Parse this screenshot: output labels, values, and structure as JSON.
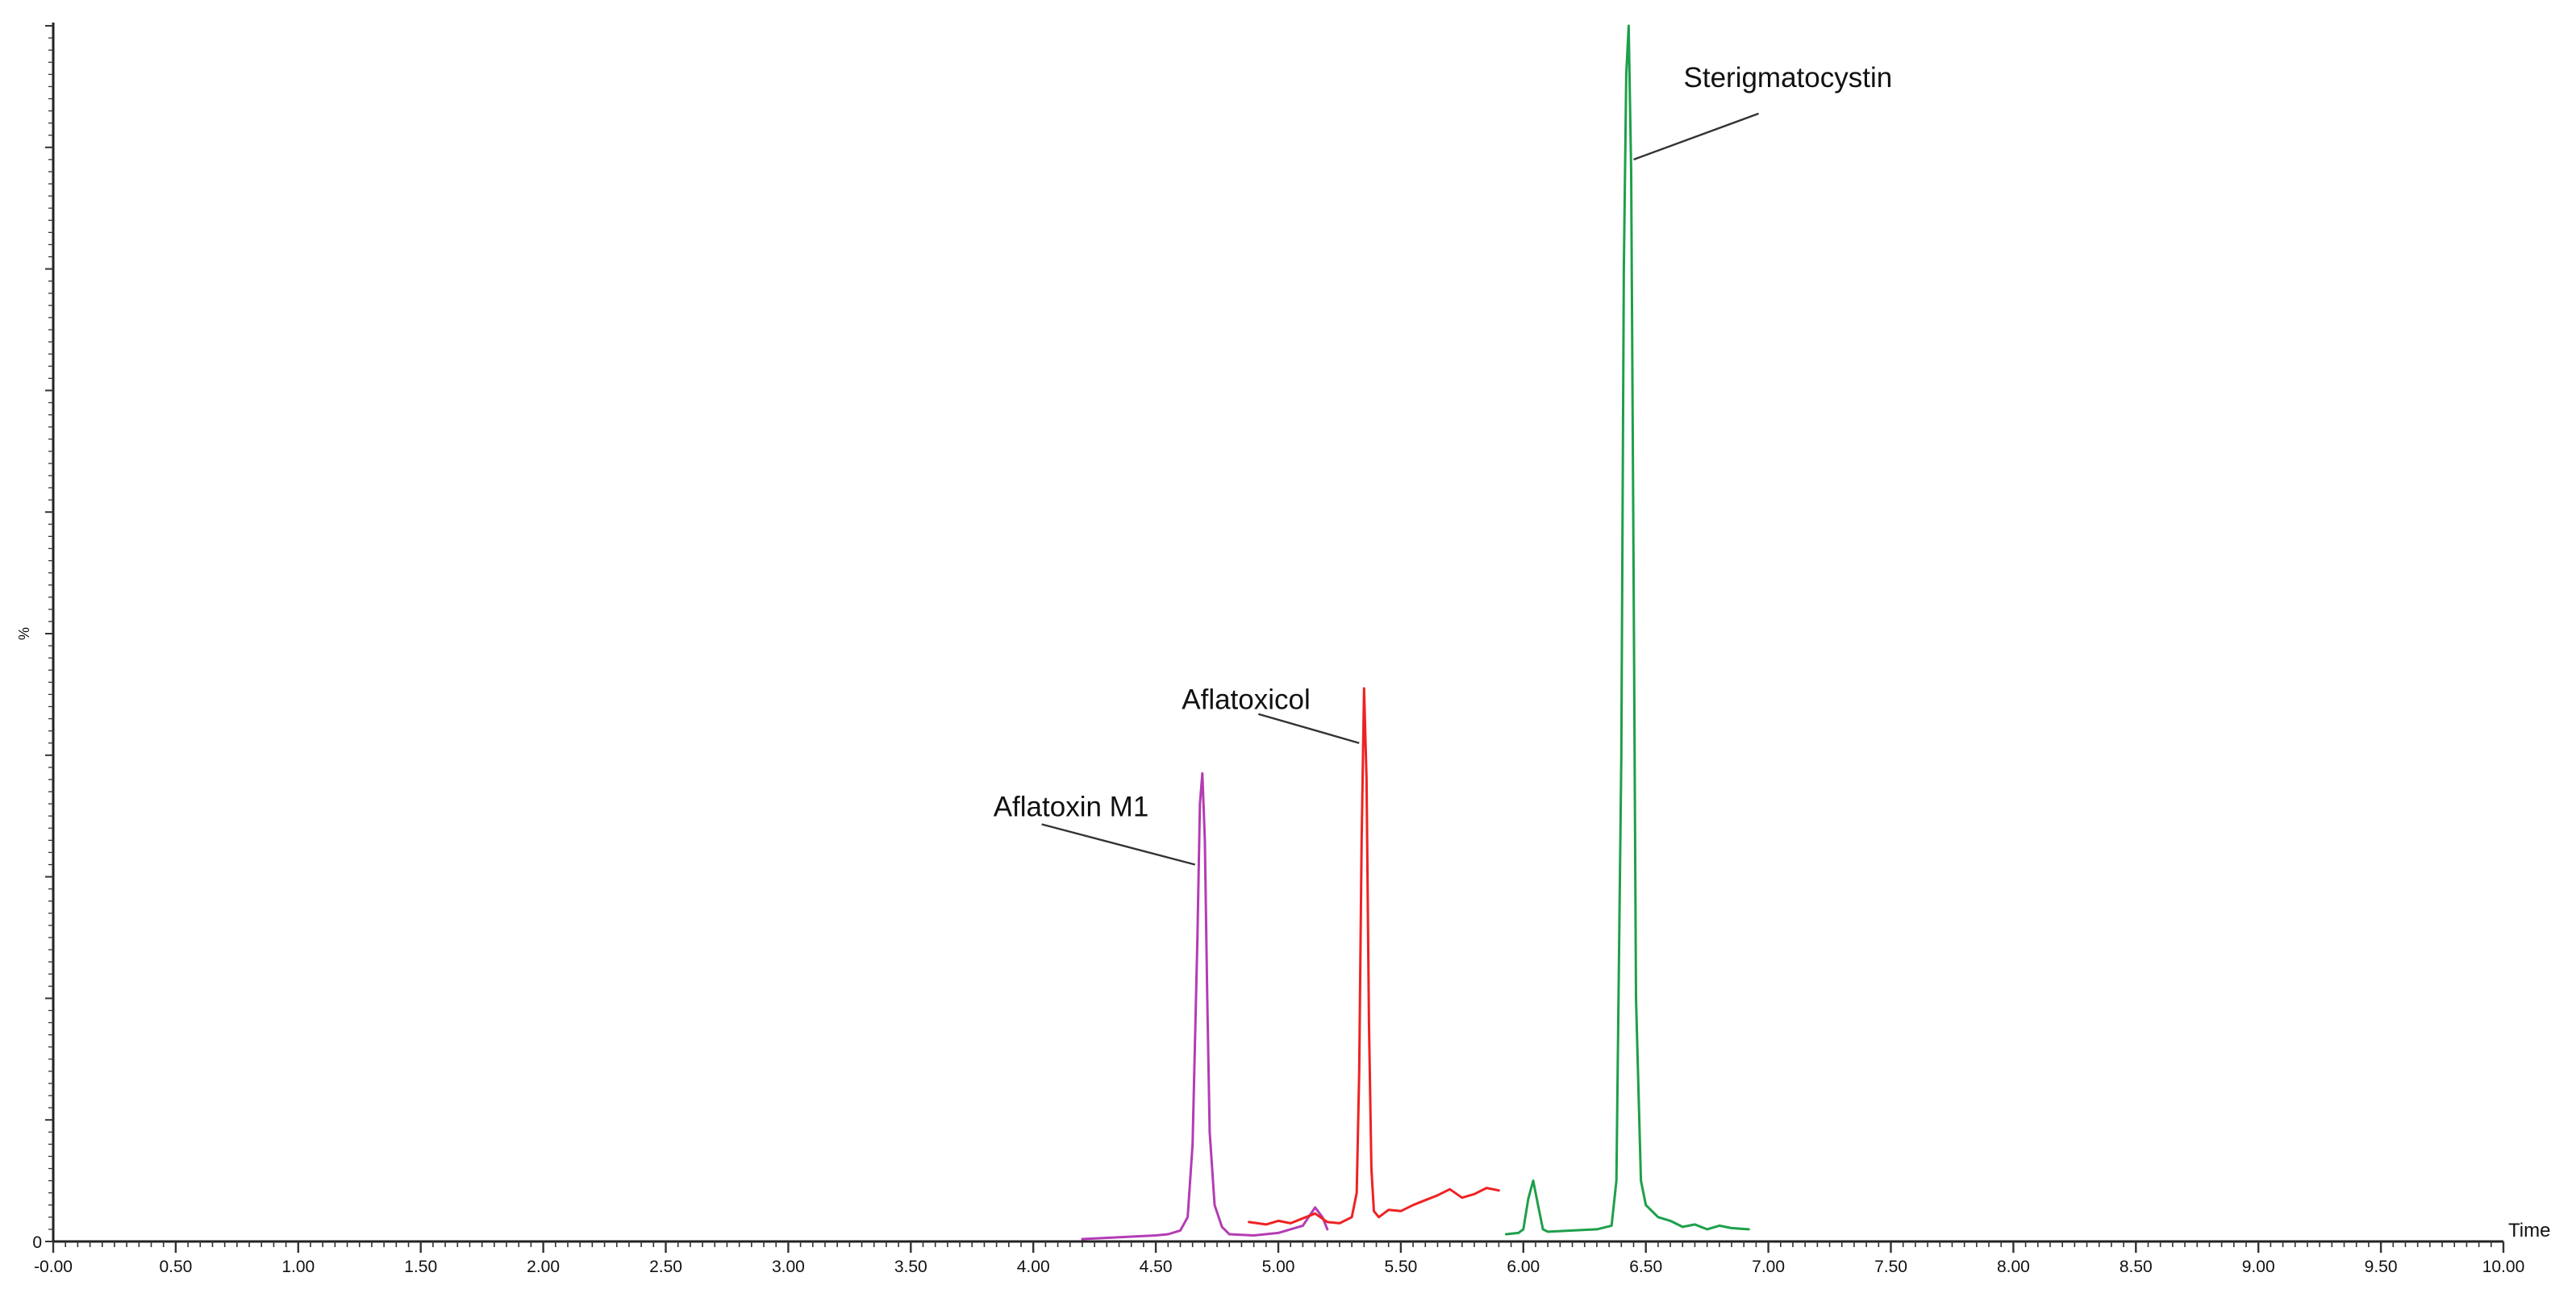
{
  "chart_data": {
    "type": "line",
    "title": "",
    "xlabel": "Time",
    "ylabel": "%",
    "xlim": [
      0,
      10
    ],
    "ylim": [
      0,
      100
    ],
    "x_ticks": [
      "-0.00",
      "0.50",
      "1.00",
      "1.50",
      "2.00",
      "2.50",
      "3.00",
      "3.50",
      "4.00",
      "4.50",
      "5.00",
      "5.50",
      "6.00",
      "6.50",
      "7.00",
      "7.50",
      "8.00",
      "8.50",
      "9.00",
      "9.50",
      "10.00"
    ],
    "y_ticks": [
      "0"
    ],
    "grid": false,
    "legend": "none",
    "series": [
      {
        "color": "#b43cb4",
        "x": [
          4.2,
          4.3,
          4.4,
          4.5,
          4.55,
          4.6,
          4.63,
          4.65,
          4.67,
          4.68,
          4.69,
          4.7,
          4.71,
          4.72,
          4.74,
          4.77,
          4.8,
          4.9,
          5.0,
          5.1,
          5.15,
          5.18,
          5.2
        ],
        "y": [
          0.2,
          0.3,
          0.4,
          0.5,
          0.6,
          0.9,
          2.0,
          8.0,
          25.0,
          36.0,
          38.5,
          33.0,
          20.0,
          9.0,
          3.0,
          1.2,
          0.6,
          0.5,
          0.7,
          1.3,
          2.8,
          2.0,
          1.0
        ]
      },
      {
        "color": "#ee2222",
        "x": [
          4.88,
          4.95,
          5.0,
          5.05,
          5.1,
          5.15,
          5.2,
          5.25,
          5.3,
          5.32,
          5.33,
          5.34,
          5.35,
          5.36,
          5.37,
          5.38,
          5.39,
          5.41,
          5.45,
          5.5,
          5.55,
          5.6,
          5.65,
          5.7,
          5.75,
          5.8,
          5.85,
          5.9
        ],
        "y": [
          1.6,
          1.4,
          1.7,
          1.5,
          1.9,
          2.3,
          1.6,
          1.5,
          2.0,
          4.0,
          14.0,
          33.0,
          45.5,
          38.0,
          18.0,
          6.0,
          2.5,
          2.0,
          2.6,
          2.5,
          3.0,
          3.4,
          3.8,
          4.3,
          3.6,
          3.9,
          4.4,
          4.2
        ]
      },
      {
        "color": "#1da04a",
        "x": [
          5.93,
          5.98,
          6.0,
          6.02,
          6.04,
          6.06,
          6.08,
          6.1,
          6.2,
          6.3,
          6.36,
          6.38,
          6.4,
          6.41,
          6.42,
          6.43,
          6.44,
          6.45,
          6.46,
          6.48,
          6.5,
          6.55,
          6.6,
          6.65,
          6.7,
          6.75,
          6.8,
          6.85,
          6.92
        ],
        "y": [
          0.6,
          0.7,
          1.0,
          3.5,
          5.0,
          3.0,
          1.0,
          0.8,
          0.9,
          1.0,
          1.3,
          5.0,
          40.0,
          80.0,
          96.0,
          100.0,
          88.0,
          55.0,
          20.0,
          5.0,
          3.0,
          2.0,
          1.7,
          1.2,
          1.4,
          1.0,
          1.3,
          1.1,
          1.0
        ]
      }
    ],
    "annotations": [
      {
        "text": "Aflatoxin M1",
        "x": 4.66,
        "y": 31.0
      },
      {
        "text": "Aflatoxicol",
        "x": 5.33,
        "y": 41.0
      },
      {
        "text": "Sterigmatocystin",
        "x": 6.45,
        "y": 89.0
      }
    ]
  }
}
